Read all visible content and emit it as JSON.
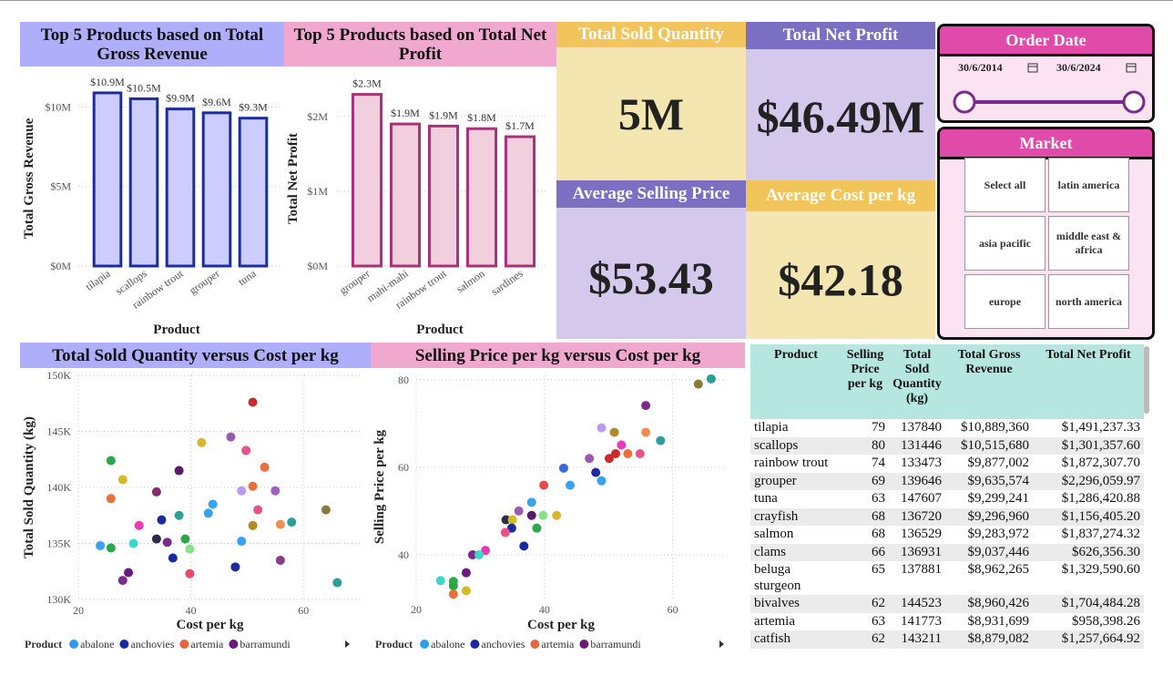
{
  "chart_data": [
    {
      "type": "bar",
      "title": "Top 5 Products based on Total Gross Revenue",
      "x_label": "Product",
      "y_label": "Total Gross Revenue",
      "categories": [
        "tilapia",
        "scallops",
        "rainbow trout",
        "grouper",
        "tuna"
      ],
      "values": [
        10889360,
        10515680,
        9877002,
        9635574,
        9299241
      ],
      "value_labels": [
        "$10.9M",
        "$10.5M",
        "$9.9M",
        "$9.6M",
        "$9.3M"
      ],
      "color": "#ccccff",
      "edge_color": "#1a2e9c",
      "title_color": "#aeaefa",
      "ylim": [
        0,
        11000000
      ],
      "yticks": [
        {
          "value": 0,
          "label": "$0M"
        },
        {
          "value": 5000000,
          "label": "$5M"
        },
        {
          "value": 10000000,
          "label": "$10M"
        }
      ],
      "grid": true
    },
    {
      "type": "bar",
      "title": "Top 5 Products based on Total Net Profit",
      "x_label": "Product",
      "y_label": "Total Net Profit",
      "categories": [
        "grouper",
        "mahi-mahi",
        "rainbow trout",
        "salmon",
        "sardines"
      ],
      "values": [
        2296059.97,
        1900000,
        1872307.7,
        1837274.32,
        1730000
      ],
      "value_labels": [
        "$2.3M",
        "$1.9M",
        "$1.9M",
        "$1.8M",
        "$1.7M"
      ],
      "color": "#f2cfdc",
      "edge_color": "#a8327a",
      "title_color": "#f0a8cf",
      "ylim": [
        0,
        2340000
      ],
      "yticks": [
        {
          "value": 0,
          "label": "$0M"
        },
        {
          "value": 1000000,
          "label": "$1M"
        },
        {
          "value": 2000000,
          "label": "$2M"
        }
      ],
      "grid": true
    },
    {
      "type": "scatter",
      "title": "Total Sold Quantity versus Cost per kg",
      "x_label": "Cost per kg",
      "y_label": "Total Sold Quantity (kg)",
      "title_color": "#aeaefa",
      "x": [
        51.0,
        25.8,
        27.9,
        25.8,
        33.9,
        41.9,
        47.1,
        49.8,
        53.1,
        37.9,
        51.0,
        55.0,
        49.0,
        43.9,
        51.9,
        43.1,
        37.9,
        34.8,
        30.8,
        55.9,
        57.9,
        64.0,
        51.0,
        39.0,
        33.9,
        35.8,
        49.0,
        23.9,
        25.8,
        29.8,
        39.8,
        36.8,
        55.9,
        47.9,
        28.9,
        39.8,
        27.9,
        66.0
      ],
      "values": [
        147600,
        142400,
        140700,
        139000,
        139600,
        144000,
        144500,
        143300,
        141800,
        141500,
        140100,
        139700,
        139700,
        138500,
        138000,
        137700,
        137500,
        137100,
        136600,
        136700,
        136900,
        138000,
        136600,
        135400,
        135400,
        135100,
        135200,
        134800,
        134600,
        135000,
        134500,
        133700,
        133500,
        132900,
        132400,
        132300,
        131700,
        131500
      ],
      "colors": [
        "#cc2a2a",
        "#2ca84a",
        "#d8b82a",
        "#e8703a",
        "#8a2a6a",
        "#d8b82a",
        "#9a5ab0",
        "#e8508a",
        "#e8703a",
        "#5a1a6a",
        "#e8703a",
        "#a060c0",
        "#b89af0",
        "#3aa0f0",
        "#e8508a",
        "#3aa0f0",
        "#2aa09a",
        "#1a2aa0",
        "#e83ab8",
        "#f09050",
        "#2aa09a",
        "#8a7a3a",
        "#b08a2a",
        "#2ca84a",
        "#2a2a4a",
        "#7a2a8a",
        "#3aa0f0",
        "#3aa0f0",
        "#2ca84a",
        "#3ad8c8",
        "#8ae08a",
        "#1a2aa0",
        "#8a3a8a",
        "#1a2aa0",
        "#6a1a7a",
        "#e84a6a",
        "#7a2a8a",
        "#2aa09a"
      ],
      "xlim": [
        20,
        70
      ],
      "xticks": [
        20,
        40,
        60
      ],
      "ylim": [
        130000,
        150000
      ],
      "yticks": [
        {
          "value": 130000,
          "label": "130K"
        },
        {
          "value": 135000,
          "label": "135K"
        },
        {
          "value": 140000,
          "label": "140K"
        },
        {
          "value": 145000,
          "label": "145K"
        },
        {
          "value": 150000,
          "label": "150K"
        }
      ],
      "grid": true,
      "legend": {
        "title": "Product",
        "items": [
          {
            "name": "abalone",
            "color": "#2d9cf0"
          },
          {
            "name": "anchovies",
            "color": "#1a2aa0"
          },
          {
            "name": "artemia",
            "color": "#e8643a"
          },
          {
            "name": "barramundi",
            "color": "#6b1a7a"
          }
        ]
      }
    },
    {
      "type": "scatter",
      "title": "Selling Price per kg versus Cost per kg",
      "x_label": "Cost per kg",
      "y_label": "Selling Price per kg",
      "title_color": "#f0a8cf",
      "x": [
        66.0,
        64.0,
        55.8,
        48.9,
        50.9,
        55.8,
        52.0,
        58.1,
        47.0,
        50.1,
        51.1,
        53.0,
        54.9,
        43.0,
        48.0,
        48.9,
        44.0,
        39.9,
        38.0,
        36.0,
        39.8,
        41.9,
        34.0,
        35.0,
        38.0,
        34.9,
        38.8,
        33.9,
        36.8,
        30.8,
        28.8,
        29.8,
        27.8,
        23.8,
        25.8,
        25.8,
        27.8,
        25.8
      ],
      "values": [
        80.2,
        79.0,
        74.1,
        69.0,
        68.0,
        68.0,
        65.1,
        66.1,
        62.0,
        62.0,
        63.1,
        63.1,
        63.1,
        59.8,
        58.8,
        56.9,
        55.9,
        55.9,
        52.0,
        50.0,
        49.0,
        49.0,
        48.0,
        48.0,
        49.0,
        46.1,
        46.1,
        45.1,
        42.0,
        41.0,
        40.0,
        40.0,
        35.9,
        34.1,
        33.9,
        32.9,
        31.8,
        31.0
      ],
      "colors": [
        "#2aa09a",
        "#8a7a3a",
        "#7a2a8a",
        "#b89af0",
        "#b08a2a",
        "#f09050",
        "#e83ab8",
        "#2aa09a",
        "#9a5ab0",
        "#cc2a2a",
        "#cc2a2a",
        "#e8703a",
        "#e8508a",
        "#3a6ad8",
        "#1a2aa0",
        "#3aa0f0",
        "#3aa0f0",
        "#e84a4a",
        "#3aa0f0",
        "#9a5ab0",
        "#8ae08a",
        "#d8b82a",
        "#2a2a4a",
        "#d8b82a",
        "#5a1a6a",
        "#1a2aa0",
        "#2ca84a",
        "#e8508a",
        "#1a2aa0",
        "#e83ab8",
        "#7a2a8a",
        "#3ad8c8",
        "#6a1a7a",
        "#3ad8c8",
        "#2ca84a",
        "#2ca84a",
        "#d8b82a",
        "#e8703a"
      ],
      "xlim": [
        20,
        68
      ],
      "xticks": [
        20,
        40,
        60
      ],
      "ylim": [
        30,
        81
      ],
      "yticks": [
        40,
        60,
        80
      ],
      "grid": true,
      "legend": {
        "title": "Product",
        "items": [
          {
            "name": "abalone",
            "color": "#2d9cf0"
          },
          {
            "name": "anchovies",
            "color": "#1a2aa0"
          },
          {
            "name": "artemia",
            "color": "#e8643a"
          },
          {
            "name": "barramundi",
            "color": "#6b1a7a"
          }
        ]
      }
    }
  ],
  "cards": [
    {
      "title": "Total Sold Quantity",
      "value": "5M"
    },
    {
      "title": "Total Net Profit",
      "value": "$46.49M"
    },
    {
      "title": "Average Selling Price",
      "value": "$53.43"
    },
    {
      "title": "Average Cost per kg",
      "value": "$42.18"
    }
  ],
  "order_date": {
    "title": "Order Date",
    "start": "30/6/2014",
    "end": "30/6/2024"
  },
  "market": {
    "title": "Market",
    "options": [
      "Select all",
      "latin america",
      "asia pacific",
      "middle east & africa",
      "europe",
      "north america"
    ]
  },
  "table": {
    "columns": [
      "Product",
      "Selling Price per kg",
      "Total Sold Quantity (kg)",
      "Total Gross Revenue",
      "Total Net Profit"
    ],
    "rows": [
      [
        "tilapia",
        "79",
        "137840",
        "$10,889,360",
        "$1,491,237.33"
      ],
      [
        "scallops",
        "80",
        "131446",
        "$10,515,680",
        "$1,301,357.60"
      ],
      [
        "rainbow trout",
        "74",
        "133473",
        "$9,877,002",
        "$1,872,307.70"
      ],
      [
        "grouper",
        "69",
        "139646",
        "$9,635,574",
        "$2,296,059.97"
      ],
      [
        "tuna",
        "63",
        "147607",
        "$9,299,241",
        "$1,286,420.88"
      ],
      [
        "crayfish",
        "68",
        "136720",
        "$9,296,960",
        "$1,156,405.20"
      ],
      [
        "salmon",
        "68",
        "136529",
        "$9,283,972",
        "$1,837,274.32"
      ],
      [
        "clams",
        "66",
        "136931",
        "$9,037,446",
        "$626,356.30"
      ],
      [
        "beluga sturgeon",
        "65",
        "137881",
        "$8,962,265",
        "$1,329,590.60"
      ],
      [
        "bivalves",
        "62",
        "144523",
        "$8,960,426",
        "$1,704,484.28"
      ],
      [
        "artemia",
        "63",
        "141773",
        "$8,931,699",
        "$958,398.26"
      ],
      [
        "catfish",
        "62",
        "143211",
        "$8,879,082",
        "$1,257,664.92"
      ]
    ]
  }
}
